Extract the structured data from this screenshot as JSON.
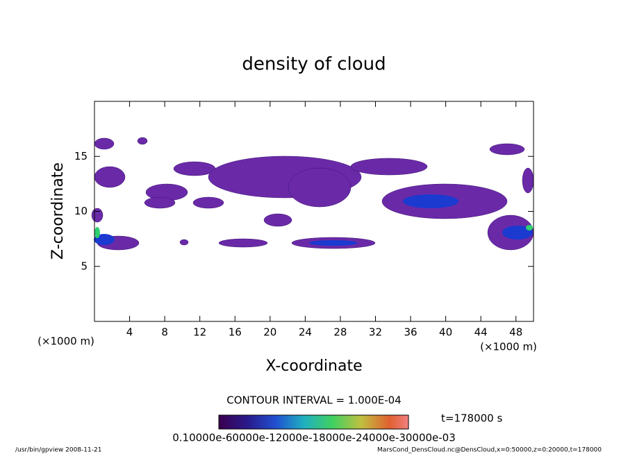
{
  "chart_data": {
    "type": "contour",
    "title": "density of cloud",
    "xlabel": "X-coordinate",
    "ylabel": "Z-coordinate",
    "x_unit": "(×1000 m)",
    "x_unit_right": "(×1000 m)",
    "xlim": [
      0,
      50
    ],
    "xticks": [
      4,
      8,
      12,
      16,
      20,
      24,
      28,
      32,
      36,
      40,
      44,
      48
    ],
    "ylim": [
      0,
      20
    ],
    "yticks": [
      5,
      10,
      15
    ],
    "contour_interval": "CONTOUR INTERVAL = 1.000E-04",
    "time": "t=178000 s",
    "colorbar_labels": "0.10000e-60000e-12000e-18000e-24000e-30000e-03",
    "footer_left": "/usr/bin/gpview   2008-11-21",
    "footer_right": "MarsCond_DensCloud.nc@DensCloud,x=0:50000,z=0:20000,t=178000"
  }
}
